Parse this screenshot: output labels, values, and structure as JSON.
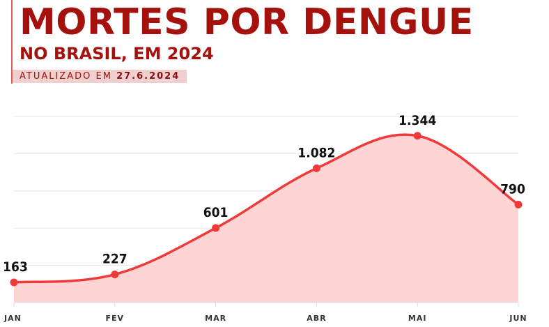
{
  "header": {
    "title": "MORTES POR DENGUE",
    "subtitle": "NO BRASIL, EM 2024",
    "updated_label": "ATUALIZADO EM",
    "updated_date": "27.6.2024"
  },
  "colors": {
    "title": "#a5110c",
    "line": "#f03a3a",
    "area": "#fdd5d5"
  },
  "chart_data": {
    "type": "area",
    "categories": [
      "JAN",
      "FEV",
      "MAR",
      "ABR",
      "MAI",
      "JUN"
    ],
    "values": [
      163,
      227,
      601,
      1082,
      1344,
      790
    ],
    "data_labels": [
      "163",
      "227",
      "601",
      "1.082",
      "1.344",
      "790"
    ],
    "ylim": [
      0,
      1500
    ],
    "grid": true,
    "xlabel": "",
    "ylabel": ""
  }
}
